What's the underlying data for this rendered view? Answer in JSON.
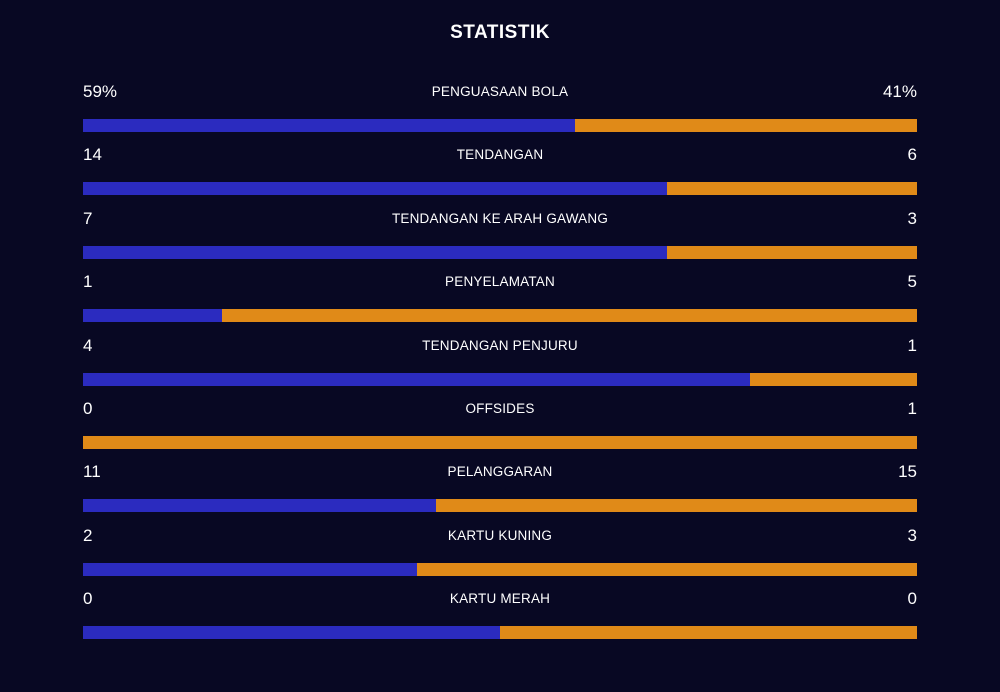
{
  "title": "STATISTIK",
  "colors": {
    "background": "#080823",
    "home": "#2b2bbf",
    "away": "#e08a18"
  },
  "stats": [
    {
      "label": "PENGUASAAN BOLA",
      "home": "59%",
      "away": "41%",
      "home_share": 0.59
    },
    {
      "label": "TENDANGAN",
      "home": "14",
      "away": "6",
      "home_share": 0.7
    },
    {
      "label": "TENDANGAN KE ARAH GAWANG",
      "home": "7",
      "away": "3",
      "home_share": 0.7
    },
    {
      "label": "PENYELAMATAN",
      "home": "1",
      "away": "5",
      "home_share": 0.1667
    },
    {
      "label": "TENDANGAN PENJURU",
      "home": "4",
      "away": "1",
      "home_share": 0.8
    },
    {
      "label": "OFFSIDES",
      "home": "0",
      "away": "1",
      "home_share": 0.0
    },
    {
      "label": "PELANGGARAN",
      "home": "11",
      "away": "15",
      "home_share": 0.4231
    },
    {
      "label": "KARTU KUNING",
      "home": "2",
      "away": "3",
      "home_share": 0.4
    },
    {
      "label": "KARTU MERAH",
      "home": "0",
      "away": "0",
      "home_share": 0.5
    }
  ]
}
